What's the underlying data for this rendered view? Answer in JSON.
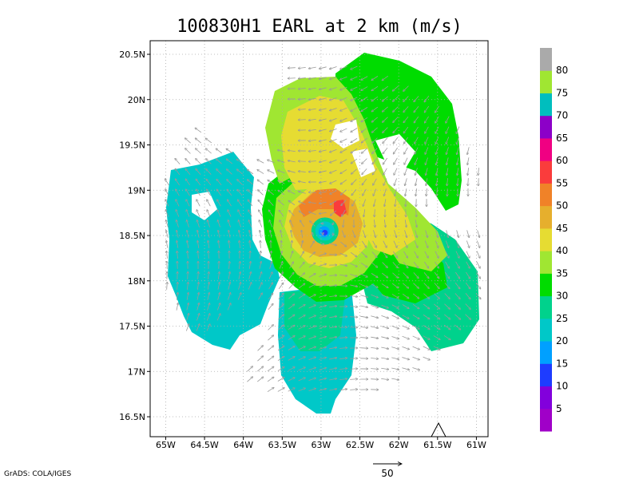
{
  "chart_data": {
    "type": "heatmap",
    "title": "100830H1 EARL at 2 km (m/s)",
    "xlabel": "",
    "ylabel": "",
    "x_ticks": [
      "65W",
      "64.5W",
      "64W",
      "63.5W",
      "63W",
      "62.5W",
      "62W",
      "61.5W",
      "61W"
    ],
    "y_ticks": [
      "16.5N",
      "17N",
      "17.5N",
      "18N",
      "18.5N",
      "19N",
      "19.5N",
      "20N",
      "20.5N"
    ],
    "xlim": [
      -65.2,
      -60.85
    ],
    "ylim": [
      16.28,
      20.65
    ],
    "grid": true,
    "colorbar": {
      "levels": [
        "5",
        "10",
        "15",
        "20",
        "25",
        "30",
        "35",
        "40",
        "45",
        "50",
        "55",
        "60",
        "65",
        "70",
        "75",
        "80"
      ],
      "colors": [
        "#a000c8",
        "#8200dc",
        "#1e3cff",
        "#00a0ff",
        "#00c8c8",
        "#00d28c",
        "#00dc00",
        "#a0e632",
        "#e6dc32",
        "#e6af2d",
        "#f08228",
        "#fa3c3c",
        "#f00082",
        "#8c00c8",
        "#00bebe",
        "#a0e632",
        "#aaaaaa"
      ]
    },
    "storm_center": {
      "lon": -62.95,
      "lat": 18.55
    },
    "reference_vector": {
      "label": "50",
      "speed": 50
    },
    "annotations": [
      "GrADS: COLA/IGES"
    ]
  }
}
